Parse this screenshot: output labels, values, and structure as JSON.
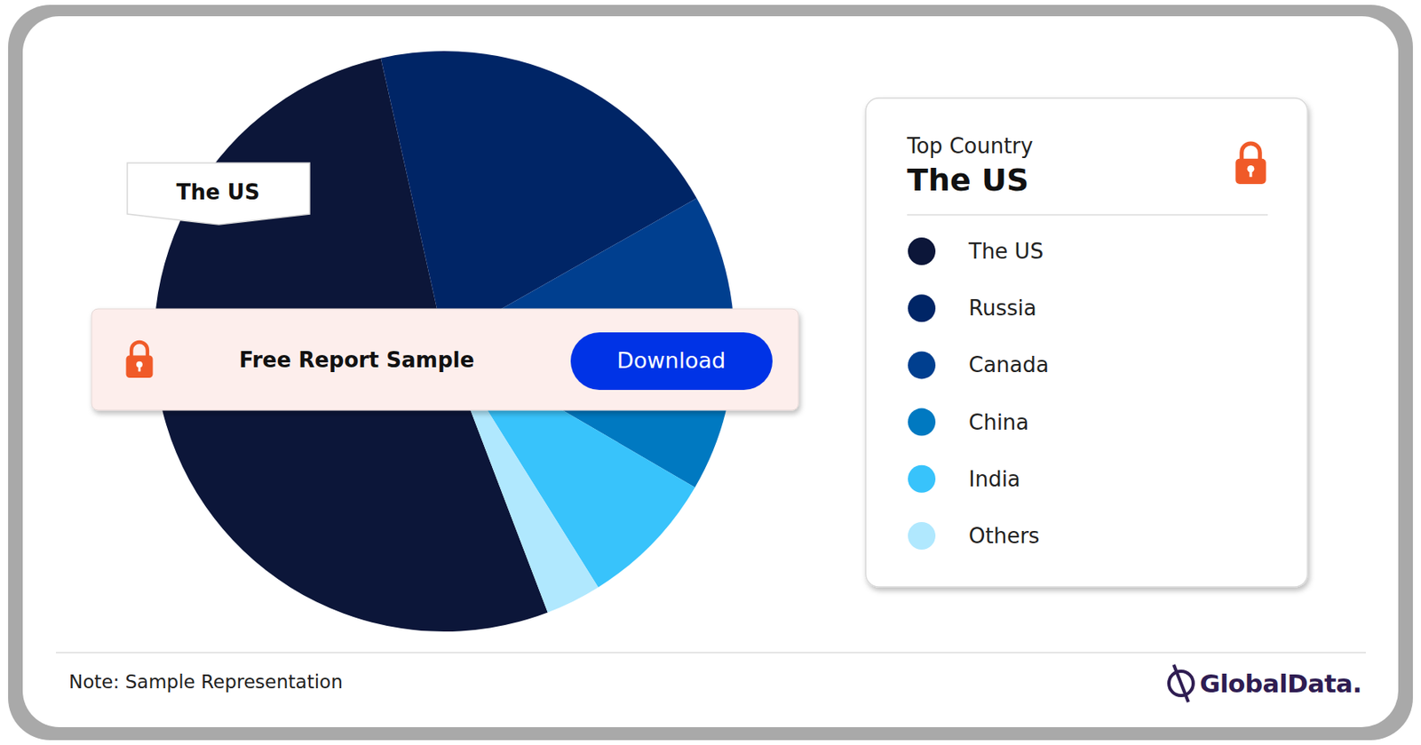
{
  "chart_data": {
    "type": "pie",
    "categories": [
      "The US",
      "Russia",
      "Canada",
      "China",
      "India",
      "Others"
    ],
    "values": [
      52.3,
      20.3,
      11.0,
      5.6,
      7.7,
      3.1
    ],
    "colors": [
      "#0c1639",
      "#002566",
      "#003f8f",
      "#0079c1",
      "#38c3fb",
      "#b0e8fe"
    ],
    "legend": "right",
    "annotations": [
      "Top Country",
      "The US",
      "The US",
      "Free Report Sample",
      "Download",
      "Note: Sample Representation",
      "GlobalData."
    ]
  }
}
